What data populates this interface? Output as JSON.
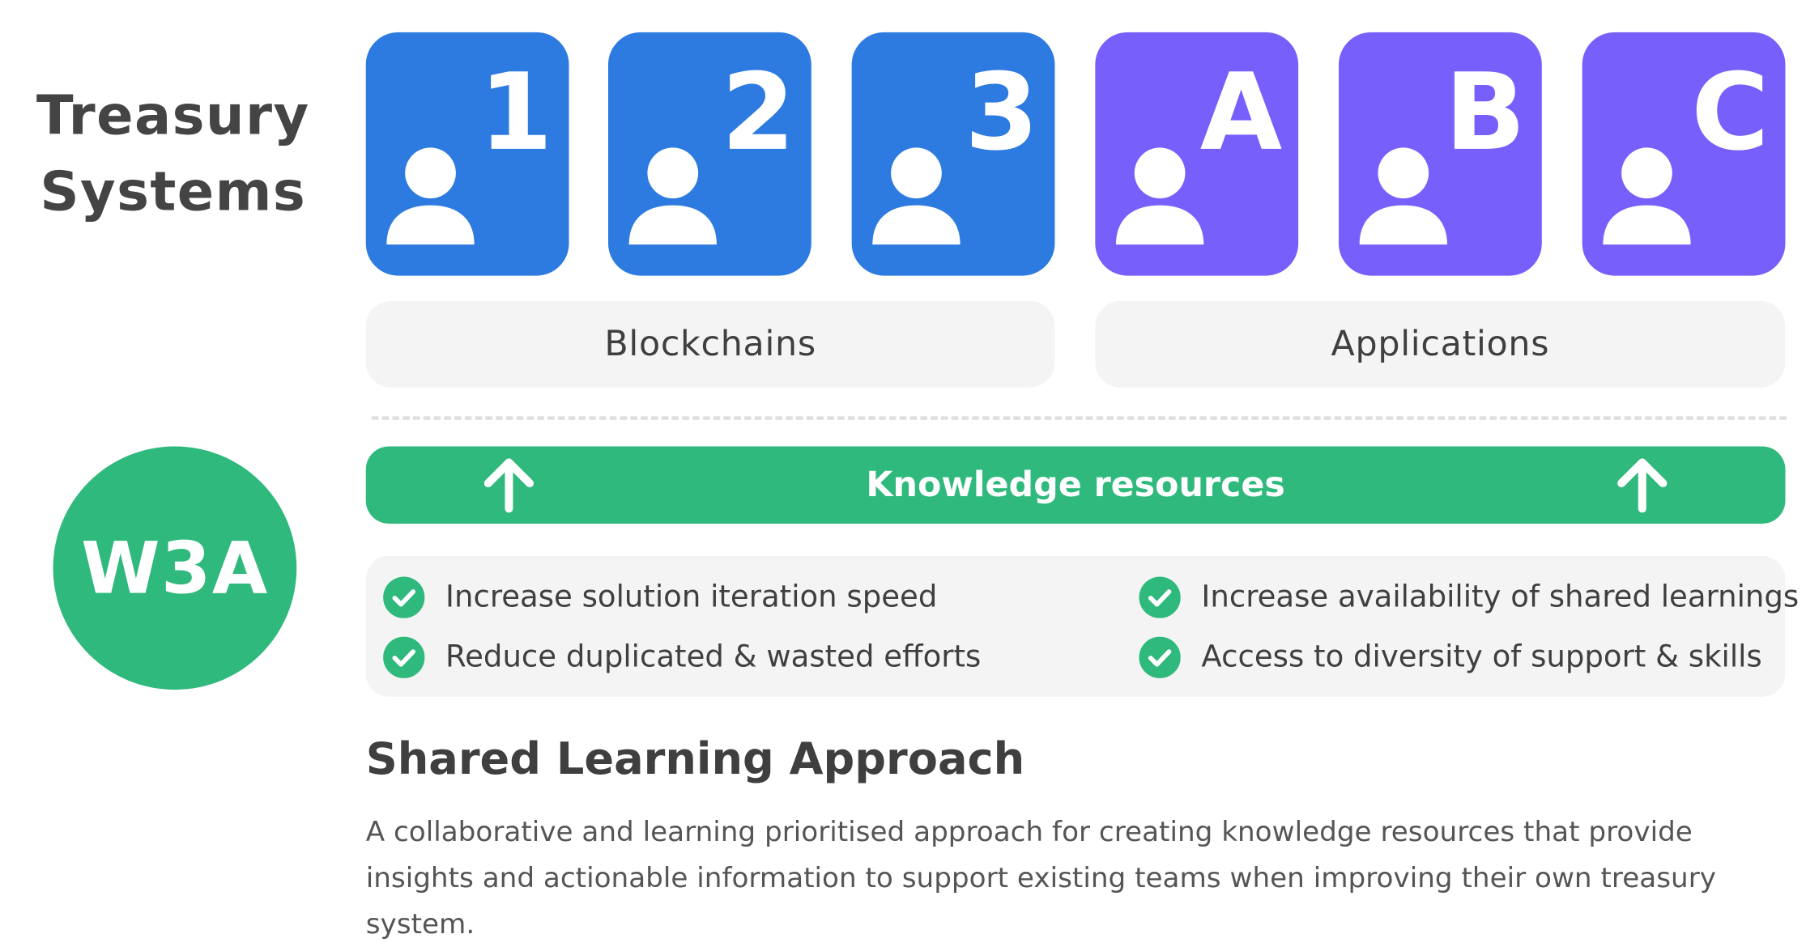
{
  "title": "Treasury Systems",
  "cards": [
    {
      "mark": "1",
      "group": "Blockchains",
      "color": "#2d7ae0"
    },
    {
      "mark": "2",
      "group": "Blockchains",
      "color": "#2d7ae0"
    },
    {
      "mark": "3",
      "group": "Blockchains",
      "color": "#2d7ae0"
    },
    {
      "mark": "A",
      "group": "Applications",
      "color": "#775ffc"
    },
    {
      "mark": "B",
      "group": "Applications",
      "color": "#775ffc"
    },
    {
      "mark": "C",
      "group": "Applications",
      "color": "#775ffc"
    }
  ],
  "groups": {
    "blockchains": "Blockchains",
    "applications": "Applications"
  },
  "badge": "W3A",
  "knowledge_bar": {
    "label": "Knowledge resources",
    "icon": "arrow-up-icon",
    "color": "#2fb97c"
  },
  "benefits": [
    "Increase solution iteration speed",
    "Reduce duplicated & wasted efforts",
    "Increase availability of shared learnings",
    "Access to diversity of support & skills"
  ],
  "approach": {
    "heading": "Shared Learning Approach",
    "body": "A collaborative and learning prioritised approach for creating knowledge resources that provide insights and actionable information to support existing teams when improving their own treasury system."
  },
  "colors": {
    "blue": "#2d7ae0",
    "purple": "#775ffc",
    "green": "#2fb97c",
    "panel": "#f4f4f4",
    "text": "#3f3f3f"
  }
}
